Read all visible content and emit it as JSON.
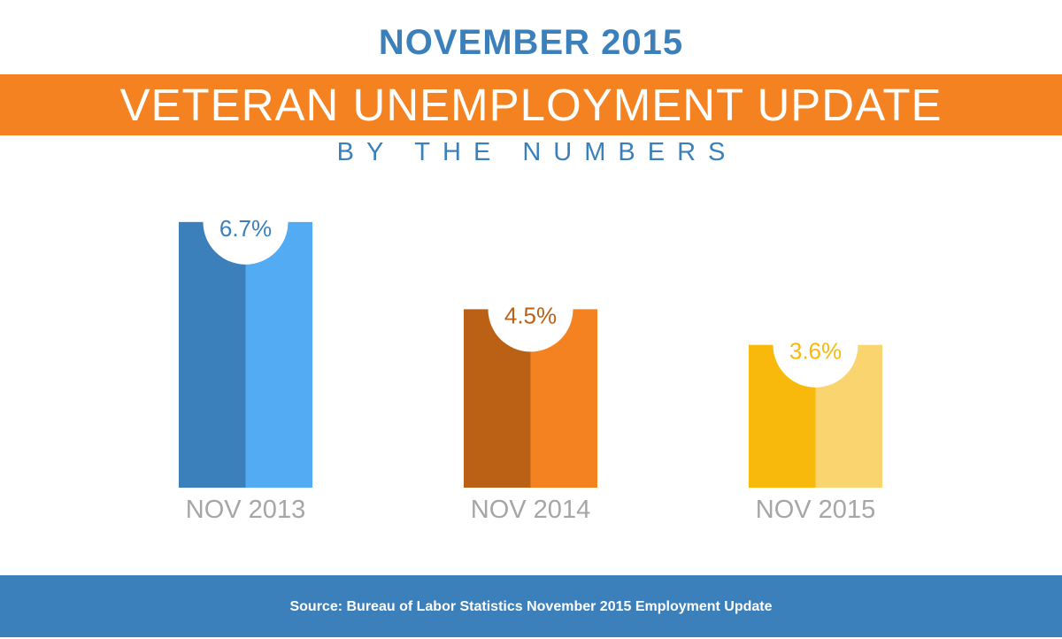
{
  "header": {
    "title": "NOVEMBER 2015",
    "banner": "VETERAN UNEMPLOYMENT UPDATE",
    "subtitle": "BY THE NUMBERS"
  },
  "chart_data": {
    "type": "bar",
    "title": "VETERAN UNEMPLOYMENT UPDATE",
    "categories": [
      "NOV 2013",
      "NOV 2014",
      "NOV 2015"
    ],
    "values": [
      6.7,
      4.5,
      3.6
    ],
    "value_labels": [
      "6.7%",
      "4.5%",
      "3.6%"
    ],
    "ylim": [
      0,
      8
    ],
    "xlabel": "",
    "ylabel": "",
    "grid": false,
    "colors": [
      {
        "dark": "#3b80bb",
        "light": "#52abf3",
        "label": "#3b80bb"
      },
      {
        "dark": "#ba6116",
        "light": "#f58220",
        "label": "#ba6116"
      },
      {
        "dark": "#f8b90c",
        "light": "#fad46e",
        "label": "#f8b90c"
      }
    ],
    "category_label_color": "#a6a6a6"
  },
  "footer": {
    "source": "Source: Bureau of Labor Statistics November 2015 Employment Update"
  }
}
